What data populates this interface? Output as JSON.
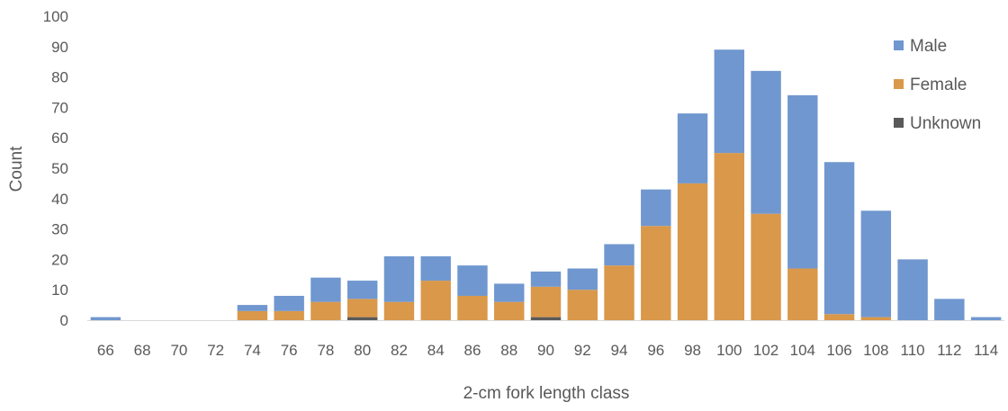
{
  "chart_data": {
    "type": "bar",
    "stacked": true,
    "categories": [
      "66",
      "68",
      "70",
      "72",
      "74",
      "76",
      "78",
      "80",
      "82",
      "84",
      "86",
      "88",
      "90",
      "92",
      "94",
      "96",
      "98",
      "100",
      "102",
      "104",
      "106",
      "108",
      "110",
      "112",
      "114"
    ],
    "series": [
      {
        "name": "Unknown",
        "color": "#595959",
        "values": [
          0,
          0,
          0,
          0,
          0,
          0,
          0,
          1,
          0,
          0,
          0,
          0,
          1,
          0,
          0,
          0,
          0,
          0,
          0,
          0,
          0,
          0,
          0,
          0,
          0
        ]
      },
      {
        "name": "Female",
        "color": "#D9984A",
        "values": [
          0,
          0,
          0,
          0,
          3,
          3,
          6,
          6,
          6,
          13,
          8,
          6,
          10,
          10,
          18,
          31,
          45,
          55,
          35,
          17,
          2,
          1,
          0,
          0,
          0
        ]
      },
      {
        "name": "Male",
        "color": "#7097CF",
        "values": [
          1,
          0,
          0,
          0,
          2,
          5,
          8,
          6,
          15,
          8,
          10,
          6,
          5,
          7,
          7,
          12,
          23,
          34,
          47,
          57,
          50,
          35,
          20,
          7,
          1
        ]
      }
    ],
    "legend_order": [
      "Male",
      "Female",
      "Unknown"
    ],
    "legend_position": "top-right",
    "xlabel": "2-cm fork length class",
    "ylabel": "Count",
    "ylim": [
      0,
      100
    ],
    "yticks": [
      0,
      10,
      20,
      30,
      40,
      50,
      60,
      70,
      80,
      90,
      100
    ],
    "grid": false
  }
}
